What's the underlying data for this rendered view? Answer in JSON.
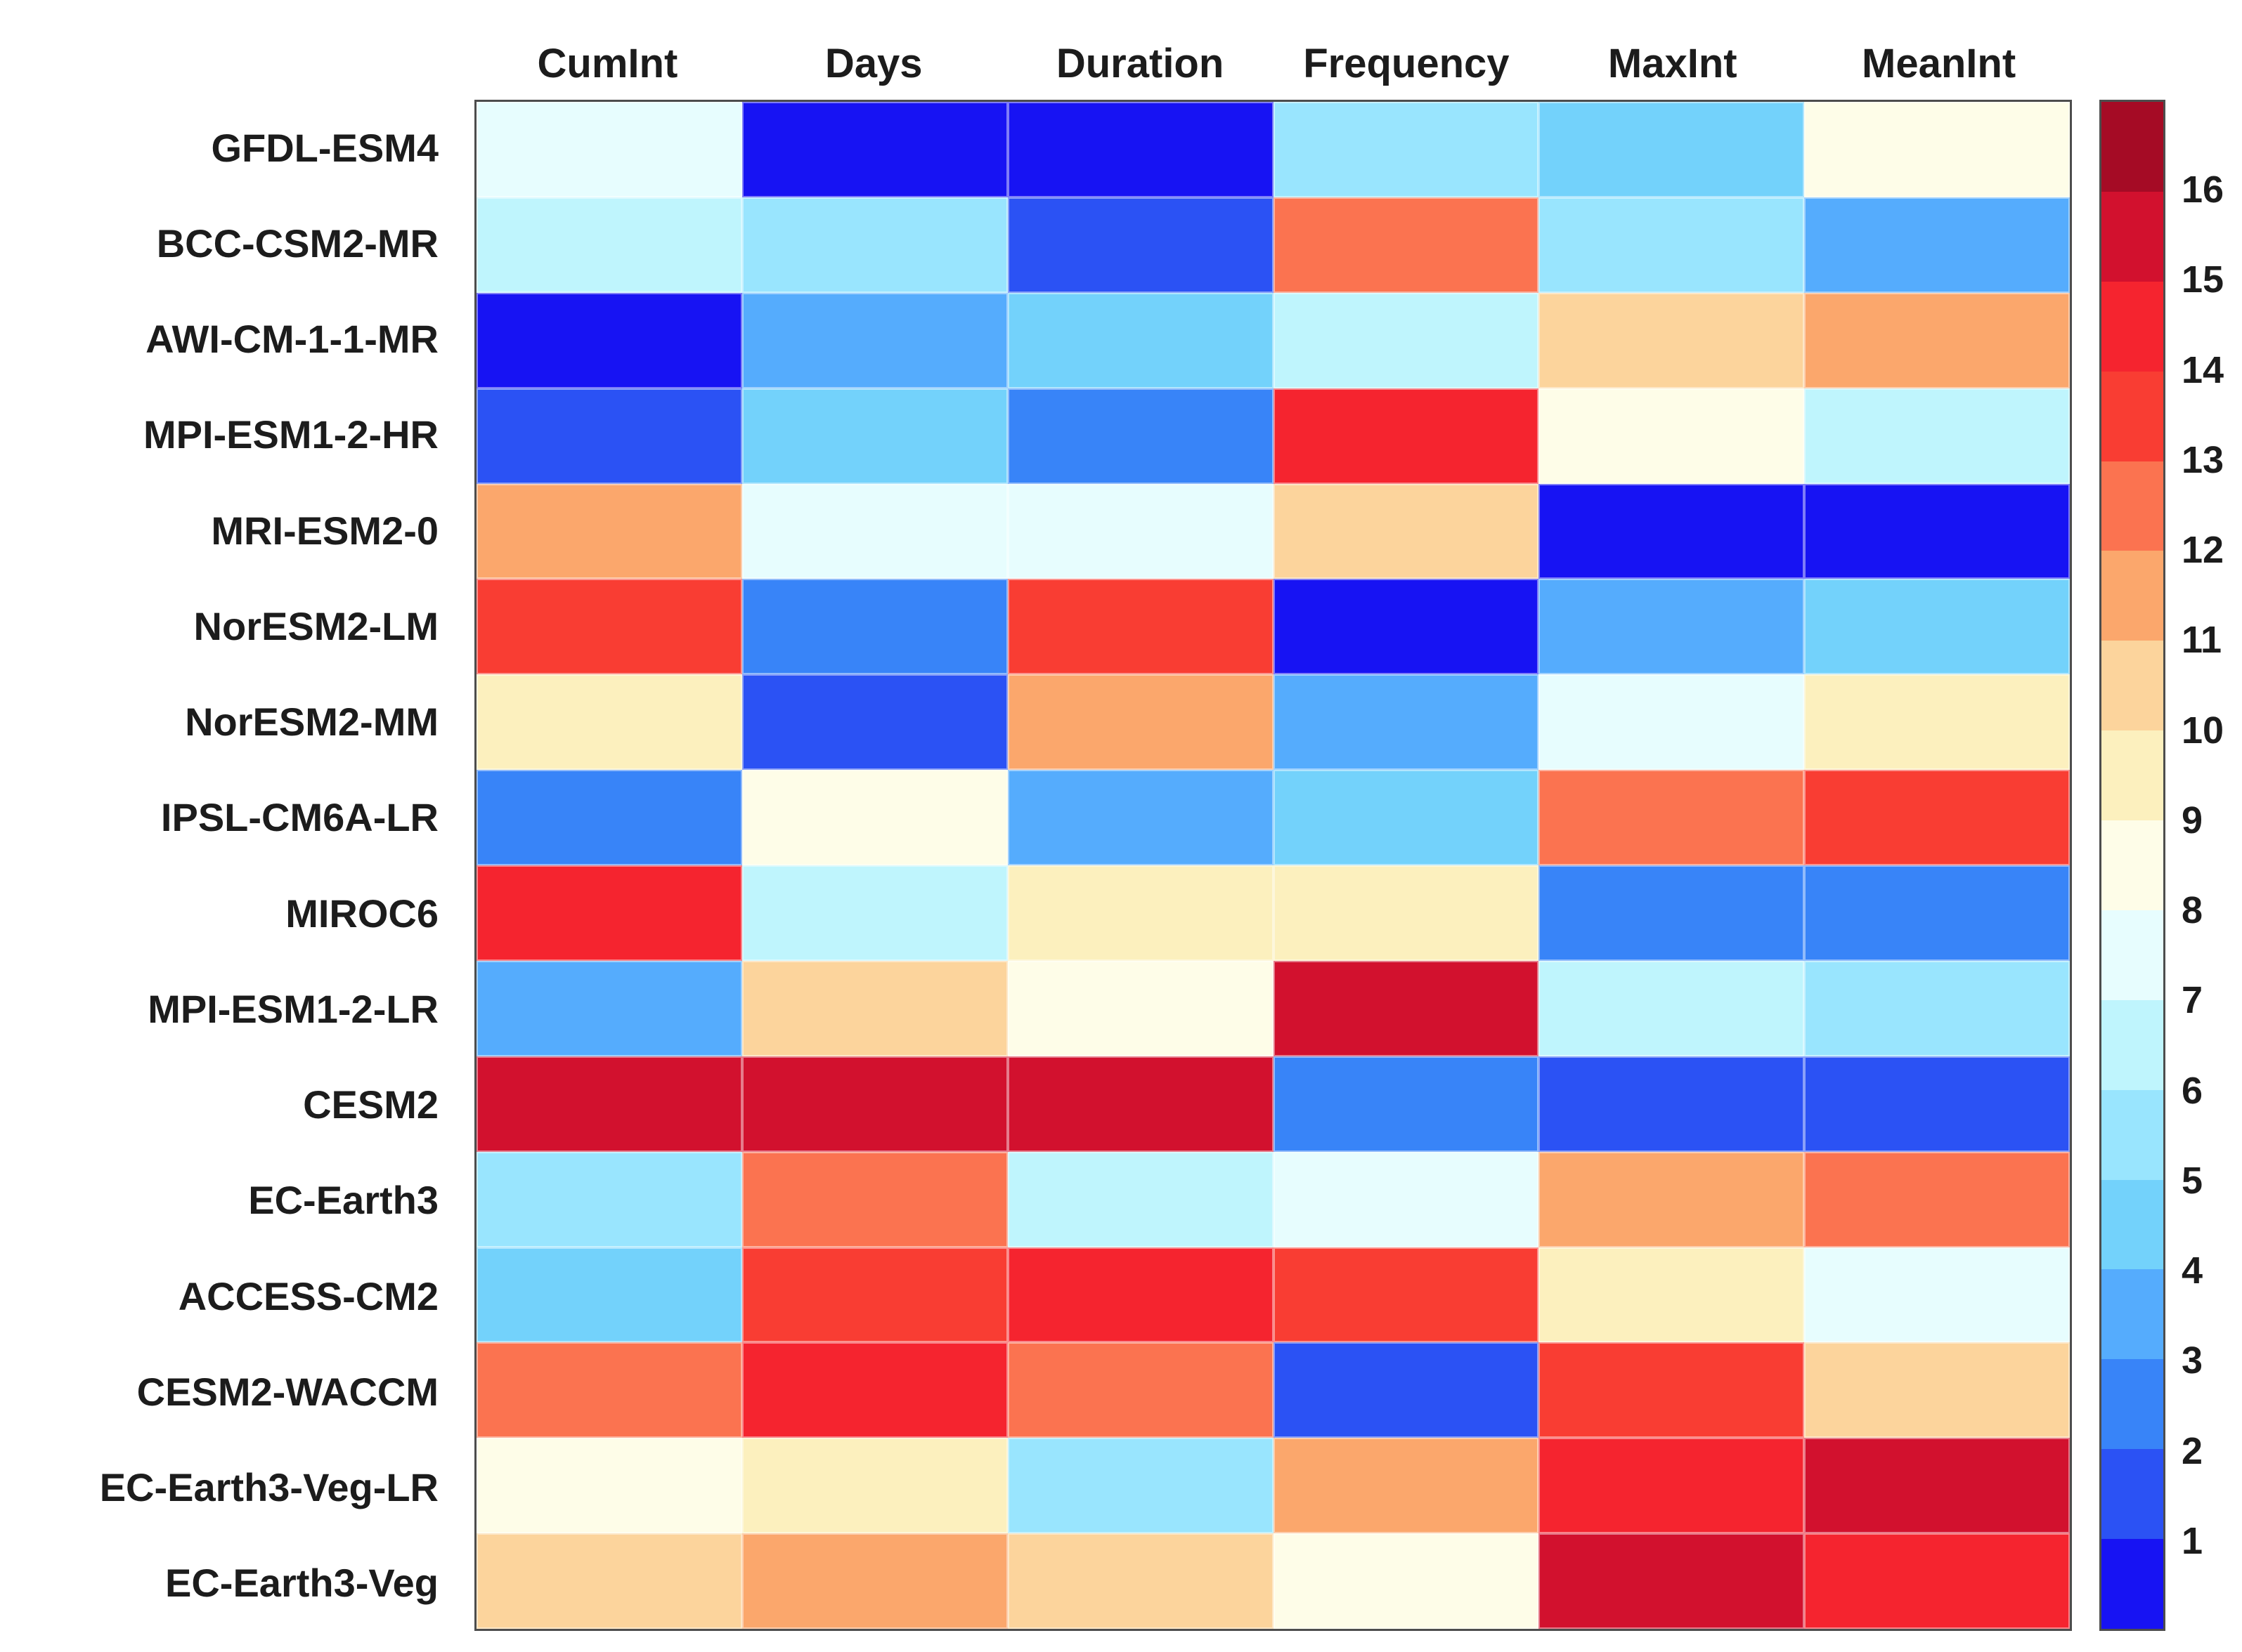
{
  "chart_data": {
    "type": "heatmap",
    "title": "",
    "xlabel": "",
    "ylabel": "",
    "columns": [
      "CumInt",
      "Days",
      "Duration",
      "Frequency",
      "MaxInt",
      "MeanInt"
    ],
    "rows": [
      "GFDL-ESM4",
      "BCC-CSM2-MR",
      "AWI-CM-1-1-MR",
      "MPI-ESM1-2-HR",
      "MRI-ESM2-0",
      "NorESM2-LM",
      "NorESM2-MM",
      "IPSL-CM6A-LR",
      "MIROC6",
      "MPI-ESM1-2-LR",
      "CESM2",
      "EC-Earth3",
      "ACCESS-CM2",
      "CESM2-WACCM",
      "EC-Earth3-Veg-LR",
      "EC-Earth3-Veg"
    ],
    "values": [
      [
        8,
        1,
        1,
        6,
        5,
        9
      ],
      [
        7,
        6,
        2,
        13,
        6,
        4
      ],
      [
        1,
        4,
        5,
        7,
        11,
        12
      ],
      [
        2,
        5,
        3,
        15,
        9,
        7
      ],
      [
        12,
        8,
        8,
        11,
        1,
        1
      ],
      [
        14,
        3,
        14,
        1,
        4,
        5
      ],
      [
        10,
        2,
        12,
        4,
        8,
        10
      ],
      [
        3,
        9,
        4,
        5,
        13,
        14
      ],
      [
        15,
        7,
        10,
        10,
        3,
        3
      ],
      [
        4,
        11,
        9,
        16,
        7,
        6
      ],
      [
        16,
        16,
        16,
        3,
        2,
        2
      ],
      [
        6,
        13,
        7,
        8,
        12,
        13
      ],
      [
        5,
        14,
        15,
        14,
        10,
        8
      ],
      [
        13,
        15,
        13,
        2,
        14,
        11
      ],
      [
        9,
        10,
        6,
        12,
        15,
        16
      ],
      [
        11,
        12,
        11,
        9,
        16,
        15
      ]
    ],
    "value_range": [
      1,
      16
    ],
    "colorbar_ticks": [
      1,
      2,
      3,
      4,
      5,
      6,
      7,
      8,
      9,
      10,
      11,
      12,
      13,
      14,
      15,
      16
    ],
    "colorbar_segments": 17,
    "legend_position": "right",
    "grid": false,
    "palette": {
      "1": "#1713f3",
      "2": "#2b52f4",
      "3": "#3884f8",
      "4": "#55acfd",
      "5": "#73d2fb",
      "6": "#99e5fe",
      "7": "#bff5fd",
      "8": "#e7fdfe",
      "9": "#fefde8",
      "10": "#fcf0be",
      "11": "#fcd49c",
      "12": "#fba76c",
      "13": "#fb7350",
      "14": "#f93d33",
      "15": "#f5242f",
      "16": "#d2112e",
      "overflow_top": "#a50b25"
    },
    "colors": {
      "axes_border": "#4d4d4d",
      "label_text": "#1c1c1c",
      "background": "#ffffff",
      "cell_gridline": "rgba(255,255,255,0.45)"
    }
  }
}
